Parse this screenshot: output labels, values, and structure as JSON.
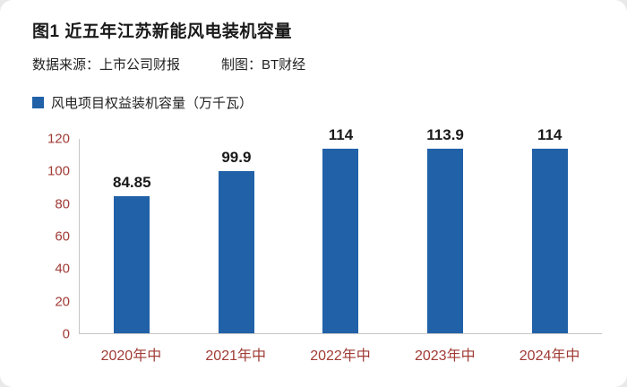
{
  "page": {
    "title": "图1 近五年江苏新能风电装机容量",
    "source_label": "数据来源：上市公司财报",
    "maker_label": "制图：BT财经"
  },
  "legend": {
    "label": "风电项目权益装机容量（万千瓦）",
    "color": "#2161A8"
  },
  "chart_data": {
    "type": "bar",
    "title": "图1 近五年江苏新能风电装机容量",
    "series_name": "风电项目权益装机容量（万千瓦）",
    "categories": [
      "2020年中",
      "2021年中",
      "2022年中",
      "2023年中",
      "2024年中"
    ],
    "values": [
      84.85,
      99.9,
      114,
      113.9,
      114
    ],
    "value_labels": [
      "84.85",
      "99.9",
      "114",
      "113.9",
      "114"
    ],
    "xlabel": "",
    "ylabel": "",
    "ylim": [
      0,
      120
    ],
    "yticks": [
      0,
      20,
      40,
      60,
      80,
      100,
      120
    ],
    "bar_color": "#2161A8",
    "axis_label_color": "#A03B36",
    "axis_line_color": "#C6C6C6",
    "grid": false,
    "legend_position": "top-left"
  }
}
